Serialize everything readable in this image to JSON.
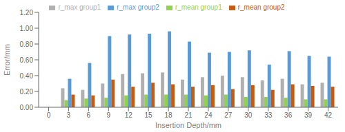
{
  "chart_data": {
    "type": "bar",
    "xlabel": "Insertion Depth/mm",
    "ylabel": "Error/mm",
    "categories": [
      0,
      3,
      6,
      9,
      12,
      15,
      18,
      21,
      24,
      27,
      30,
      33,
      36,
      39,
      42
    ],
    "series": [
      {
        "name": "r_max group1",
        "color": "#b0b0b0",
        "values": [
          0.0,
          0.24,
          0.22,
          0.3,
          0.42,
          0.43,
          0.44,
          0.35,
          0.38,
          0.4,
          0.38,
          0.34,
          0.36,
          0.29,
          0.31
        ]
      },
      {
        "name": "r_mean group1",
        "color": "#92d050",
        "values": [
          0.0,
          0.09,
          0.11,
          0.12,
          0.15,
          0.16,
          0.16,
          0.16,
          0.15,
          0.16,
          0.13,
          0.13,
          0.12,
          0.1,
          0.1
        ]
      },
      {
        "name": "r_max group2",
        "color": "#5b9bd5",
        "values": [
          0.0,
          0.36,
          0.56,
          0.9,
          0.92,
          0.93,
          0.96,
          0.83,
          0.69,
          0.7,
          0.72,
          0.54,
          0.71,
          0.65,
          0.64
        ]
      },
      {
        "name": "r_mean group2",
        "color": "#c55a11",
        "values": [
          0.0,
          0.16,
          0.15,
          0.35,
          0.26,
          0.31,
          0.29,
          0.26,
          0.28,
          0.23,
          0.28,
          0.22,
          0.29,
          0.27,
          0.26
        ]
      }
    ],
    "ylim": [
      0,
      1.2
    ],
    "yticks": [
      {
        "value": 0,
        "label": "0.00"
      },
      {
        "value": 0.2,
        "label": "0.20"
      },
      {
        "value": 0.4,
        "label": "0.40"
      },
      {
        "value": 0.6,
        "label": "0.60"
      },
      {
        "value": 0.8,
        "label": "0.80"
      },
      {
        "value": 1.0,
        "label": "1.00"
      },
      {
        "value": 1.2,
        "label": "1.20"
      }
    ],
    "grid": false,
    "legend": "top"
  }
}
